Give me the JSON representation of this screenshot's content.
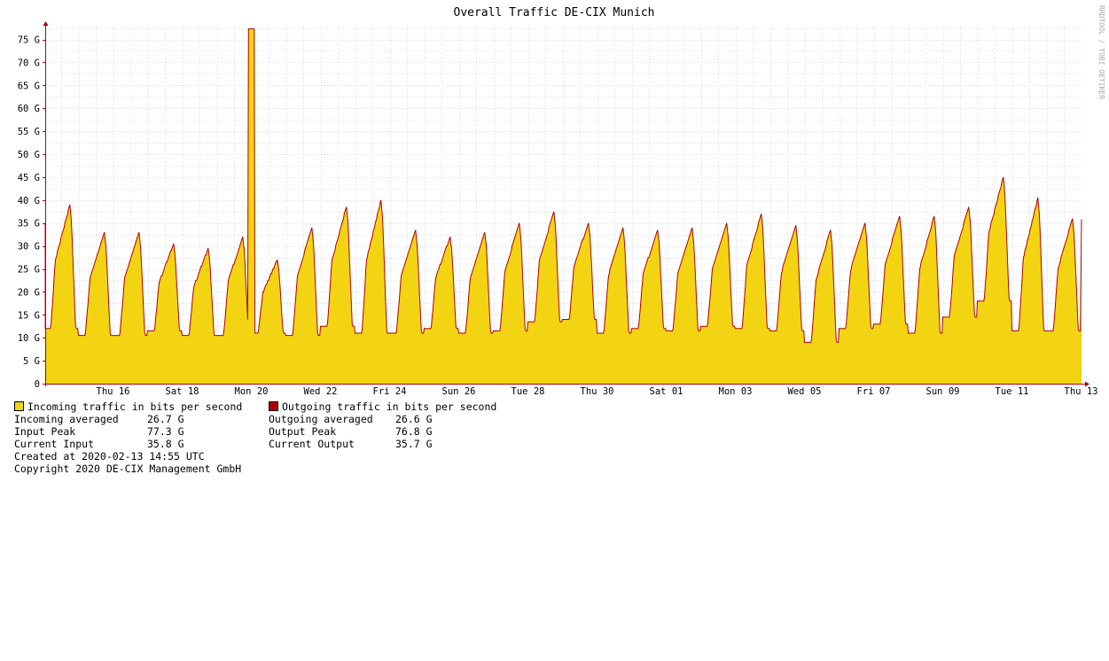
{
  "chart_data": {
    "type": "area",
    "title": "Overall Traffic DE-CIX Munich",
    "watermark": "RRDTOOL / TOBI OETIKER",
    "x_tick_labels": [
      "Thu 16",
      "Sat 18",
      "Mon 20",
      "Wed 22",
      "Fri 24",
      "Sun 26",
      "Tue 28",
      "Thu 30",
      "Sat 01",
      "Mon 03",
      "Wed 05",
      "Fri 07",
      "Sun 09",
      "Tue 11",
      "Thu 13"
    ],
    "y_tick_labels": [
      "0",
      "5 G",
      "10 G",
      "15 G",
      "20 G",
      "25 G",
      "30 G",
      "35 G",
      "40 G",
      "45 G",
      "50 G",
      "55 G",
      "60 G",
      "65 G",
      "70 G",
      "75 G"
    ],
    "ylim": [
      0,
      78
    ],
    "x_days_range": [
      0,
      30
    ],
    "grid": true,
    "colors": {
      "incoming": "#f2d413",
      "outgoing": "#b00000",
      "grid_minor": "#dddddd",
      "axis": "#b00000"
    },
    "series": [
      {
        "name": "Incoming traffic in bits per second",
        "daily_peaks_G": [
          39,
          33,
          33,
          30.5,
          29.5,
          32,
          27,
          34,
          38.5,
          40,
          33.5,
          32,
          33,
          35,
          37.5,
          35,
          34,
          33.5,
          34,
          35,
          37,
          34.5,
          33.5,
          35,
          36.5,
          36.5,
          38.5,
          45,
          40.5,
          36
        ],
        "daily_troughs_G": [
          12,
          10.5,
          10.5,
          11.5,
          10.5,
          10.5,
          11,
          10.5,
          12.5,
          11,
          11,
          12,
          11,
          11.5,
          13.5,
          14,
          11,
          12,
          11.5,
          12.5,
          12,
          11.5,
          9,
          12,
          13,
          11,
          14.5,
          18,
          11.5,
          11.5
        ],
        "spike": {
          "day": 6.0,
          "value_G": 77.3
        }
      },
      {
        "name": "Outgoing traffic in bits per second"
      }
    ]
  },
  "legend": {
    "incoming_label": "Incoming traffic in bits per second",
    "outgoing_label": "Outgoing traffic in bits per second",
    "incoming_averaged_label": "Incoming averaged",
    "incoming_averaged_value": "26.7 G",
    "input_peak_label": "Input Peak",
    "input_peak_value": "77.3 G",
    "current_input_label": "Current Input",
    "current_input_value": "35.8 G",
    "outgoing_averaged_label": "Outgoing averaged",
    "outgoing_averaged_value": "26.6 G",
    "output_peak_label": "Output Peak",
    "output_peak_value": "76.8 G",
    "current_output_label": "Current Output",
    "current_output_value": "35.7 G",
    "created": "Created at 2020-02-13 14:55 UTC",
    "copyright": "Copyright 2020 DE-CIX Management GmbH"
  }
}
